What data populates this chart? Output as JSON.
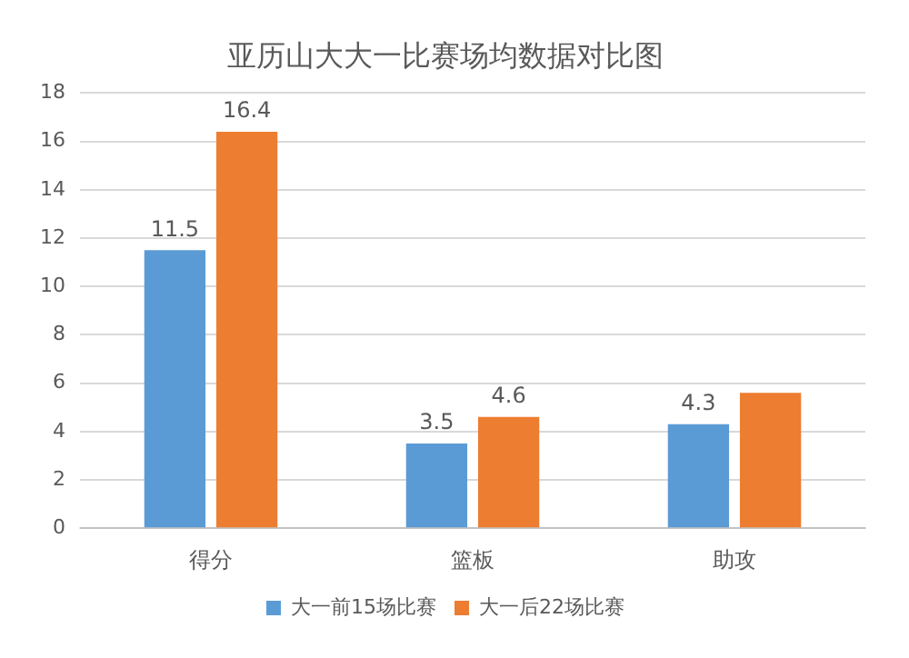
{
  "chart_data": {
    "type": "bar",
    "title": "亚历山大大一比赛场均数据对比图",
    "categories": [
      "得分",
      "篮板",
      "助攻"
    ],
    "series": [
      {
        "name": "大一前15场比赛",
        "color": "#5b9bd5",
        "values": [
          11.5,
          3.5,
          4.3
        ],
        "value_labels": [
          "11.5",
          "3.5",
          "4.3"
        ]
      },
      {
        "name": "大一后22场比赛",
        "color": "#ed7d31",
        "values": [
          16.4,
          4.6,
          5.6
        ],
        "value_labels": [
          "16.4",
          "4.6",
          null
        ]
      }
    ],
    "ylim": [
      0,
      18
    ],
    "yticks": [
      0,
      2,
      4,
      6,
      8,
      10,
      12,
      14,
      16,
      18
    ],
    "grid": "y",
    "legend": "bottom"
  }
}
